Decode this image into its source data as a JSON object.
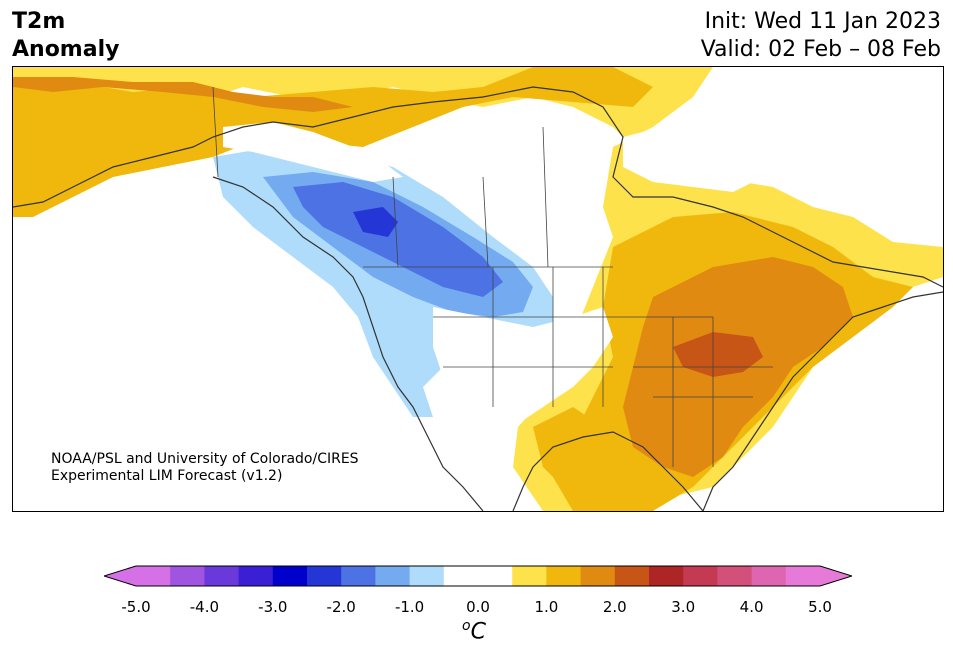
{
  "title": {
    "line1": "T2m",
    "line2": "Anomaly"
  },
  "header_right": {
    "init": "Init: Wed 11 Jan 2023",
    "valid": "Valid: 02 Feb – 08 Feb"
  },
  "credit": {
    "line1": "NOAA/PSL and University of Colorado/CIRES",
    "line2": "Experimental LIM Forecast (v1.2)"
  },
  "colorbar": {
    "tick_labels": [
      "-5.0",
      "-4.0",
      "-3.0",
      "-2.0",
      "-1.0",
      "0.0",
      "1.0",
      "2.0",
      "3.0",
      "4.0",
      "5.0"
    ],
    "unit": "C",
    "unit_prefix": "o",
    "colors": [
      "#d670e6",
      "#9f55e0",
      "#6a39db",
      "#3b1fd4",
      "#0000cc",
      "#2436d6",
      "#4c72e4",
      "#74aaf0",
      "#aedcfa",
      "#ffffff",
      "#ffffff",
      "#fde24c",
      "#f0b80c",
      "#e08a12",
      "#c65516",
      "#ae2525",
      "#c43a52",
      "#d2507a",
      "#de66b0",
      "#e77ad8"
    ],
    "under_color": "#d670e6",
    "over_color": "#e77ad8"
  }
}
